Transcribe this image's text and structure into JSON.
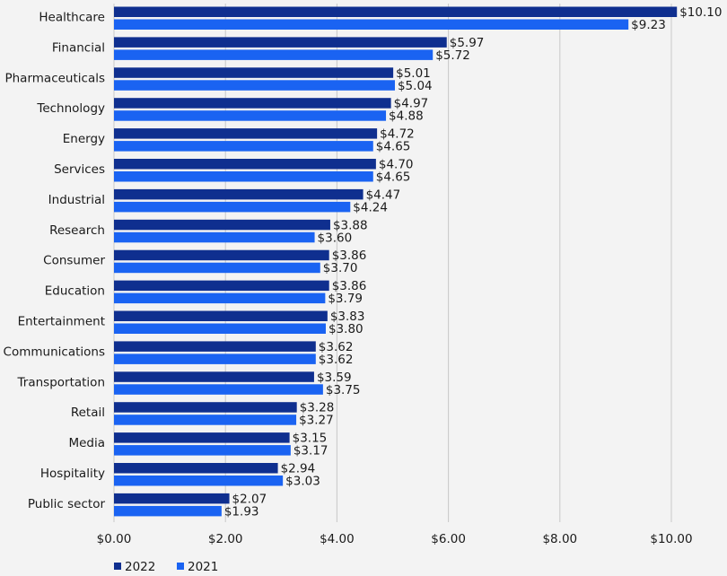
{
  "chart_data": {
    "type": "bar",
    "orientation": "horizontal",
    "categories": [
      "Healthcare",
      "Financial",
      "Pharmaceuticals",
      "Technology",
      "Energy",
      "Services",
      "Industrial",
      "Research",
      "Consumer",
      "Education",
      "Entertainment",
      "Communications",
      "Transportation",
      "Retail",
      "Media",
      "Hospitality",
      "Public sector"
    ],
    "series": [
      {
        "name": "2022",
        "color": "#0f2f8f",
        "values": [
          10.1,
          5.97,
          5.01,
          4.97,
          4.72,
          4.7,
          4.47,
          3.88,
          3.86,
          3.86,
          3.83,
          3.62,
          3.59,
          3.28,
          3.15,
          2.94,
          2.07
        ]
      },
      {
        "name": "2021",
        "color": "#1a63f2",
        "values": [
          9.23,
          5.72,
          5.04,
          4.88,
          4.65,
          4.65,
          4.24,
          3.6,
          3.7,
          3.79,
          3.8,
          3.62,
          3.75,
          3.27,
          3.17,
          3.03,
          1.93
        ]
      }
    ],
    "value_labels": {
      "2022": [
        "$10.10",
        "$5.97",
        "$5.01",
        "$4.97",
        "$4.72",
        "$4.70",
        "$4.47",
        "$3.88",
        "$3.86",
        "$3.86",
        "$3.83",
        "$3.62",
        "$3.59",
        "$3.28",
        "$3.15",
        "$2.94",
        "$2.07"
      ],
      "2021": [
        "$9.23",
        "$5.72",
        "$5.04",
        "$4.88",
        "$4.65",
        "$4.65",
        "$4.24",
        "$3.60",
        "$3.70",
        "$3.79",
        "$3.80",
        "$3.62",
        "$3.75",
        "$3.27",
        "$3.17",
        "$3.03",
        "$1.93"
      ]
    },
    "xlim": [
      0,
      10
    ],
    "xticks": [
      0,
      2,
      4,
      6,
      8,
      10
    ],
    "xtick_labels": [
      "$0.00",
      "$2.00",
      "$4.00",
      "$6.00",
      "$8.00",
      "$10.00"
    ],
    "grid": "vertical",
    "legend": "bottom-left",
    "title": "",
    "xlabel": "",
    "ylabel": ""
  }
}
